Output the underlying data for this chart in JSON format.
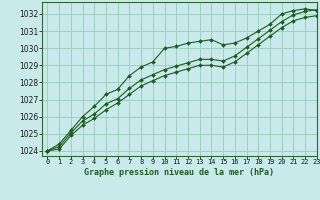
{
  "title": "Graphe pression niveau de la mer (hPa)",
  "background_color": "#c8eaea",
  "plot_bg_color": "#c8eaea",
  "grid_color": "#99ccbb",
  "line_color": "#1e5c1e",
  "marker_color": "#1e5c1e",
  "xlim": [
    -0.5,
    23
  ],
  "ylim": [
    1023.7,
    1032.7
  ],
  "yticks": [
    1024,
    1025,
    1026,
    1027,
    1028,
    1029,
    1030,
    1031,
    1032
  ],
  "xticks": [
    0,
    1,
    2,
    3,
    4,
    5,
    6,
    7,
    8,
    9,
    10,
    11,
    12,
    13,
    14,
    15,
    16,
    17,
    18,
    19,
    20,
    21,
    22,
    23
  ],
  "series": [
    [
      1024.0,
      1024.4,
      1025.2,
      1026.0,
      1026.6,
      1027.3,
      1027.6,
      1028.4,
      1028.9,
      1029.2,
      1030.0,
      1030.1,
      1030.3,
      1030.4,
      1030.5,
      1030.2,
      1030.3,
      1030.6,
      1031.0,
      1031.4,
      1032.0,
      1032.2,
      1032.3,
      1032.2
    ],
    [
      1024.0,
      1024.25,
      1025.05,
      1025.75,
      1026.15,
      1026.75,
      1027.05,
      1027.65,
      1028.15,
      1028.45,
      1028.75,
      1028.95,
      1029.15,
      1029.35,
      1029.35,
      1029.25,
      1029.55,
      1030.05,
      1030.55,
      1031.05,
      1031.55,
      1031.95,
      1032.15,
      1032.25
    ],
    [
      1024.0,
      1024.1,
      1024.9,
      1025.5,
      1025.9,
      1026.4,
      1026.8,
      1027.3,
      1027.8,
      1028.1,
      1028.4,
      1028.6,
      1028.8,
      1029.0,
      1029.0,
      1028.9,
      1029.2,
      1029.7,
      1030.2,
      1030.7,
      1031.2,
      1031.6,
      1031.8,
      1031.9
    ]
  ],
  "ylabel_fontsize": 5.5,
  "xlabel_fontsize": 6.0,
  "tick_fontsize": 5.0
}
